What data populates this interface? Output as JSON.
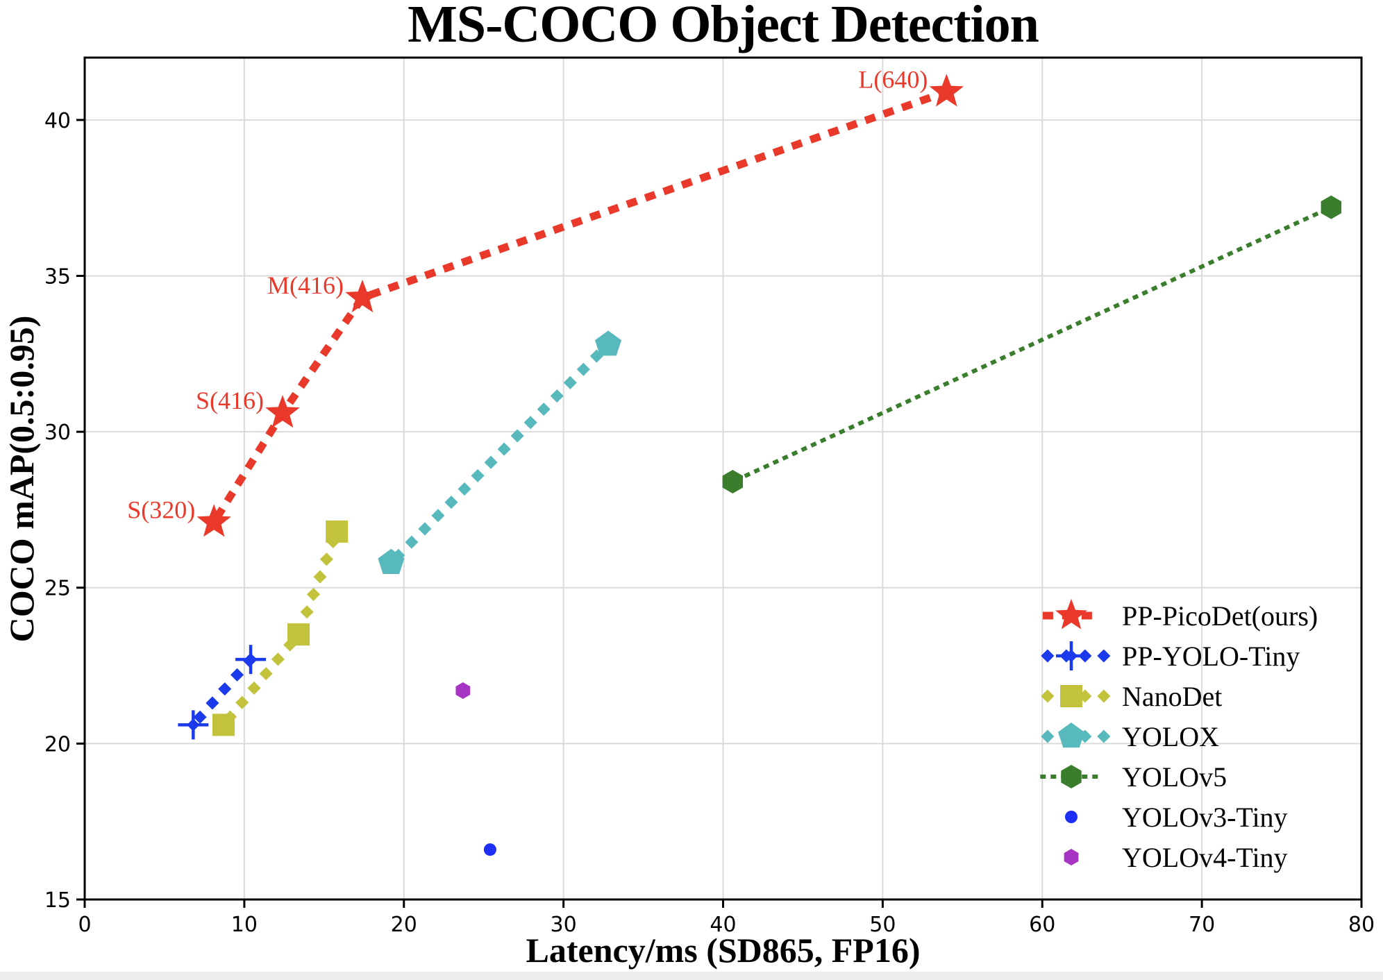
{
  "figure": {
    "title": "MS-COCO Object Detection"
  },
  "chart_data": {
    "type": "scatter",
    "title": "MS-COCO Object Detection",
    "xlabel": "Latency/ms (SD865, FP16)",
    "ylabel": "COCO mAP(0.5:0.95)",
    "xlim": [
      0,
      80
    ],
    "ylim": [
      15,
      42
    ],
    "xticks": [
      0,
      10,
      20,
      30,
      40,
      50,
      60,
      70,
      80
    ],
    "yticks": [
      15,
      20,
      25,
      30,
      35,
      40
    ],
    "grid": true,
    "grid_color": "#dadada",
    "legend_position": "lower right",
    "series": [
      {
        "name": "PP-PicoDet(ours)",
        "color": "#e8392b",
        "marker": "star",
        "line_style": "square-dash",
        "points": [
          {
            "x": 8.1,
            "y": 27.1,
            "label": "S(320)"
          },
          {
            "x": 12.4,
            "y": 30.6,
            "label": "S(416)"
          },
          {
            "x": 17.4,
            "y": 34.3,
            "label": "M(416)"
          },
          {
            "x": 54.0,
            "y": 40.9,
            "label": "L(640)"
          }
        ]
      },
      {
        "name": "PP-YOLO-Tiny",
        "color": "#1b3aeb",
        "marker": "plus",
        "line_style": "diamond-dash",
        "points": [
          {
            "x": 6.8,
            "y": 20.6
          },
          {
            "x": 10.4,
            "y": 22.7
          }
        ]
      },
      {
        "name": "NanoDet",
        "color": "#c3c23d",
        "marker": "square",
        "line_style": "diamond-dash",
        "points": [
          {
            "x": 8.7,
            "y": 20.6
          },
          {
            "x": 13.4,
            "y": 23.5
          },
          {
            "x": 15.8,
            "y": 26.8
          }
        ]
      },
      {
        "name": "YOLOX",
        "color": "#58b9bd",
        "marker": "pentagon",
        "line_style": "diamond-dash",
        "points": [
          {
            "x": 19.2,
            "y": 25.8
          },
          {
            "x": 32.8,
            "y": 32.8
          }
        ]
      },
      {
        "name": "YOLOv5",
        "color": "#3a7d2d",
        "marker": "hexagon",
        "line_style": "dotted",
        "points": [
          {
            "x": 40.6,
            "y": 28.4
          },
          {
            "x": 78.1,
            "y": 37.2
          }
        ]
      },
      {
        "name": "YOLOv3-Tiny",
        "color": "#1c2ff2",
        "marker": "circle",
        "line_style": "none",
        "points": [
          {
            "x": 25.4,
            "y": 16.6
          }
        ]
      },
      {
        "name": "YOLOv4-Tiny",
        "color": "#a834c4",
        "marker": "hexagon-small",
        "line_style": "none",
        "points": [
          {
            "x": 23.7,
            "y": 21.7
          }
        ]
      }
    ]
  }
}
